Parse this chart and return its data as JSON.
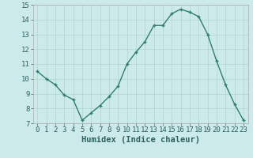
{
  "x": [
    0,
    1,
    2,
    3,
    4,
    5,
    6,
    7,
    8,
    9,
    10,
    11,
    12,
    13,
    14,
    15,
    16,
    17,
    18,
    19,
    20,
    21,
    22,
    23
  ],
  "y": [
    10.5,
    10.0,
    9.6,
    8.9,
    8.6,
    7.2,
    7.7,
    8.2,
    8.8,
    9.5,
    11.0,
    11.8,
    12.5,
    13.6,
    13.6,
    14.4,
    14.7,
    14.5,
    14.2,
    13.0,
    11.2,
    9.6,
    8.3,
    7.2
  ],
  "line_color": "#2e7d6e",
  "marker": "+",
  "marker_size": 3,
  "background_color": "#cdeaea",
  "grid_color": "#aed4d0",
  "xlabel": "Humidex (Indice chaleur)",
  "xlim": [
    -0.5,
    23.5
  ],
  "ylim": [
    7,
    15
  ],
  "yticks": [
    7,
    8,
    9,
    10,
    11,
    12,
    13,
    14,
    15
  ],
  "xticks": [
    0,
    1,
    2,
    3,
    4,
    5,
    6,
    7,
    8,
    9,
    10,
    11,
    12,
    13,
    14,
    15,
    16,
    17,
    18,
    19,
    20,
    21,
    22,
    23
  ],
  "xlabel_fontsize": 7.5,
  "tick_fontsize": 6.5,
  "linewidth": 1.0
}
